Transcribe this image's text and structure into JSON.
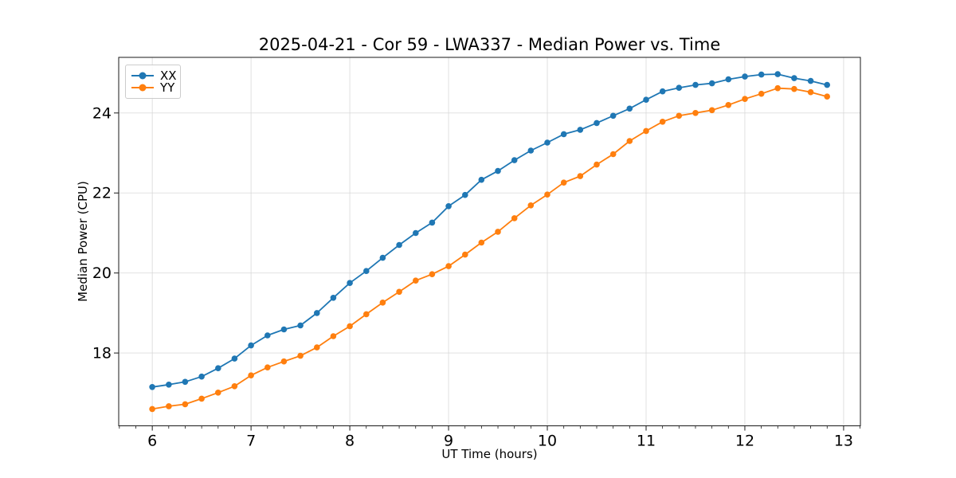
{
  "chart_data": {
    "type": "line",
    "title": "2025-04-21 - Cor 59 - LWA337 - Median Power vs. Time",
    "xlabel": "UT Time (hours)",
    "ylabel": "Median Power (CPU)",
    "xlim": [
      5.66,
      13.17
    ],
    "ylim": [
      16.18,
      25.39
    ],
    "xticks": [
      6,
      7,
      8,
      9,
      10,
      11,
      12,
      13
    ],
    "yticks": [
      18,
      20,
      22,
      24
    ],
    "x_minor_step": 0.16667,
    "grid": true,
    "legend_position": "upper-left",
    "x": [
      6.0,
      6.167,
      6.333,
      6.5,
      6.667,
      6.833,
      7.0,
      7.167,
      7.333,
      7.5,
      7.667,
      7.833,
      8.0,
      8.167,
      8.333,
      8.5,
      8.667,
      8.833,
      9.0,
      9.167,
      9.333,
      9.5,
      9.667,
      9.833,
      10.0,
      10.167,
      10.333,
      10.5,
      10.667,
      10.833,
      11.0,
      11.167,
      11.333,
      11.5,
      11.667,
      11.833,
      12.0,
      12.167,
      12.333,
      12.5,
      12.667,
      12.833
    ],
    "series": [
      {
        "name": "XX",
        "color": "#1f77b4",
        "values": [
          17.15,
          17.21,
          17.28,
          17.41,
          17.62,
          17.86,
          18.19,
          18.44,
          18.59,
          18.69,
          19.0,
          19.38,
          19.75,
          20.05,
          20.38,
          20.7,
          21.0,
          21.26,
          21.67,
          21.95,
          22.33,
          22.55,
          22.82,
          23.06,
          23.26,
          23.47,
          23.58,
          23.75,
          23.93,
          24.11,
          24.33,
          24.54,
          24.63,
          24.7,
          24.74,
          24.84,
          24.91,
          24.96,
          24.97,
          24.87,
          24.8,
          24.7
        ]
      },
      {
        "name": "YY",
        "color": "#ff7f0e",
        "values": [
          16.6,
          16.67,
          16.72,
          16.86,
          17.01,
          17.17,
          17.44,
          17.64,
          17.79,
          17.93,
          18.14,
          18.42,
          18.67,
          18.97,
          19.26,
          19.53,
          19.81,
          19.97,
          20.17,
          20.46,
          20.76,
          21.03,
          21.37,
          21.69,
          21.96,
          22.26,
          22.42,
          22.71,
          22.97,
          23.3,
          23.55,
          23.78,
          23.93,
          24.0,
          24.07,
          24.2,
          24.35,
          24.48,
          24.62,
          24.6,
          24.52,
          24.41
        ]
      }
    ]
  },
  "style_colors": {
    "spine": "#1a1a1a",
    "grid": "#d5d5d5",
    "background": "#ffffff"
  }
}
